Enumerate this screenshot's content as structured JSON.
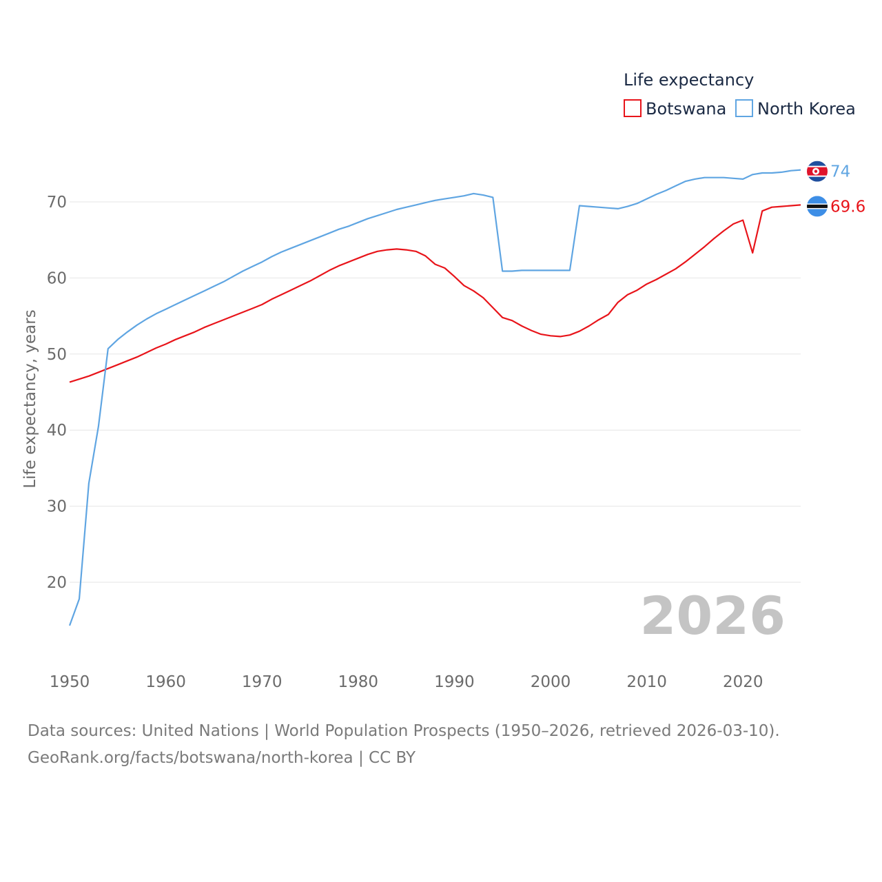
{
  "chart_data": {
    "type": "line",
    "title": "Life expectancy",
    "xlabel": "",
    "ylabel": "Life expectancy, years",
    "xlim": [
      1950,
      2026
    ],
    "ylim": [
      12.5,
      77
    ],
    "x_ticks": [
      1950,
      1960,
      1970,
      1980,
      1990,
      2000,
      2010,
      2020
    ],
    "y_ticks": [
      20,
      30,
      40,
      50,
      60,
      70
    ],
    "grid": true,
    "legend_position": "top-right",
    "year_mark": "2026",
    "series": [
      {
        "name": "Botswana",
        "color": "#e8141a",
        "end_label": "69.6",
        "flag_icon": "botswana-flag-icon",
        "x": [
          1950,
          1951,
          1952,
          1953,
          1954,
          1955,
          1956,
          1957,
          1958,
          1959,
          1960,
          1961,
          1962,
          1963,
          1964,
          1965,
          1966,
          1967,
          1968,
          1969,
          1970,
          1971,
          1972,
          1973,
          1974,
          1975,
          1976,
          1977,
          1978,
          1979,
          1980,
          1981,
          1982,
          1983,
          1984,
          1985,
          1986,
          1987,
          1988,
          1989,
          1990,
          1991,
          1992,
          1993,
          1994,
          1995,
          1996,
          1997,
          1998,
          1999,
          2000,
          2001,
          2002,
          2003,
          2004,
          2005,
          2006,
          2007,
          2008,
          2009,
          2010,
          2011,
          2012,
          2013,
          2014,
          2015,
          2016,
          2017,
          2018,
          2019,
          2020,
          2021,
          2022,
          2023,
          2024,
          2025,
          2026
        ],
        "values": [
          46.3,
          46.7,
          47.1,
          47.6,
          48.1,
          48.6,
          49.1,
          49.6,
          50.2,
          50.8,
          51.3,
          51.9,
          52.4,
          52.9,
          53.5,
          54.0,
          54.5,
          55.0,
          55.5,
          56.0,
          56.5,
          57.2,
          57.8,
          58.4,
          59.0,
          59.6,
          60.3,
          61.0,
          61.6,
          62.1,
          62.6,
          63.1,
          63.5,
          63.7,
          63.8,
          63.7,
          63.5,
          62.9,
          61.8,
          61.3,
          60.2,
          59.0,
          58.3,
          57.4,
          56.1,
          54.8,
          54.4,
          53.7,
          53.1,
          52.6,
          52.4,
          52.3,
          52.5,
          53.0,
          53.7,
          54.5,
          55.2,
          56.8,
          57.8,
          58.4,
          59.2,
          59.8,
          60.5,
          61.2,
          62.1,
          63.1,
          64.1,
          65.2,
          66.2,
          67.1,
          67.6,
          63.3,
          68.8,
          69.3,
          69.4,
          69.5,
          69.6
        ]
      },
      {
        "name": "North Korea",
        "color": "#5fa5e2",
        "end_label": "74",
        "flag_icon": "north-korea-flag-icon",
        "x": [
          1950,
          1951,
          1952,
          1953,
          1954,
          1955,
          1956,
          1957,
          1958,
          1959,
          1960,
          1961,
          1962,
          1963,
          1964,
          1965,
          1966,
          1967,
          1968,
          1969,
          1970,
          1971,
          1972,
          1973,
          1974,
          1975,
          1976,
          1977,
          1978,
          1979,
          1980,
          1981,
          1982,
          1983,
          1984,
          1985,
          1986,
          1987,
          1988,
          1989,
          1990,
          1991,
          1992,
          1993,
          1994,
          1995,
          1996,
          1997,
          1998,
          1999,
          2000,
          2001,
          2002,
          2003,
          2004,
          2005,
          2006,
          2007,
          2008,
          2009,
          2010,
          2011,
          2012,
          2013,
          2014,
          2015,
          2016,
          2017,
          2018,
          2019,
          2020,
          2021,
          2022,
          2023,
          2024,
          2025,
          2026
        ],
        "values": [
          14.3,
          17.8,
          33.0,
          40.5,
          50.7,
          51.9,
          52.9,
          53.8,
          54.6,
          55.3,
          55.9,
          56.5,
          57.1,
          57.7,
          58.3,
          58.9,
          59.5,
          60.2,
          60.9,
          61.5,
          62.1,
          62.8,
          63.4,
          63.9,
          64.4,
          64.9,
          65.4,
          65.9,
          66.4,
          66.8,
          67.3,
          67.8,
          68.2,
          68.6,
          69.0,
          69.3,
          69.6,
          69.9,
          70.2,
          70.4,
          70.6,
          70.8,
          71.1,
          70.9,
          70.6,
          60.9,
          60.9,
          61.0,
          61.0,
          61.0,
          61.0,
          61.0,
          61.0,
          69.5,
          69.4,
          69.3,
          69.2,
          69.1,
          69.4,
          69.8,
          70.4,
          71.0,
          71.5,
          72.1,
          72.7,
          73.0,
          73.2,
          73.2,
          73.2,
          73.1,
          73.0,
          73.6,
          73.8,
          73.8,
          73.9,
          74.1,
          74.2
        ]
      }
    ]
  },
  "footer": {
    "line1": "Data sources: United Nations | World Population Prospects (1950–2026, retrieved 2026-03-10).",
    "line2": "GeoRank.org/facts/botswana/north-korea | CC BY"
  }
}
